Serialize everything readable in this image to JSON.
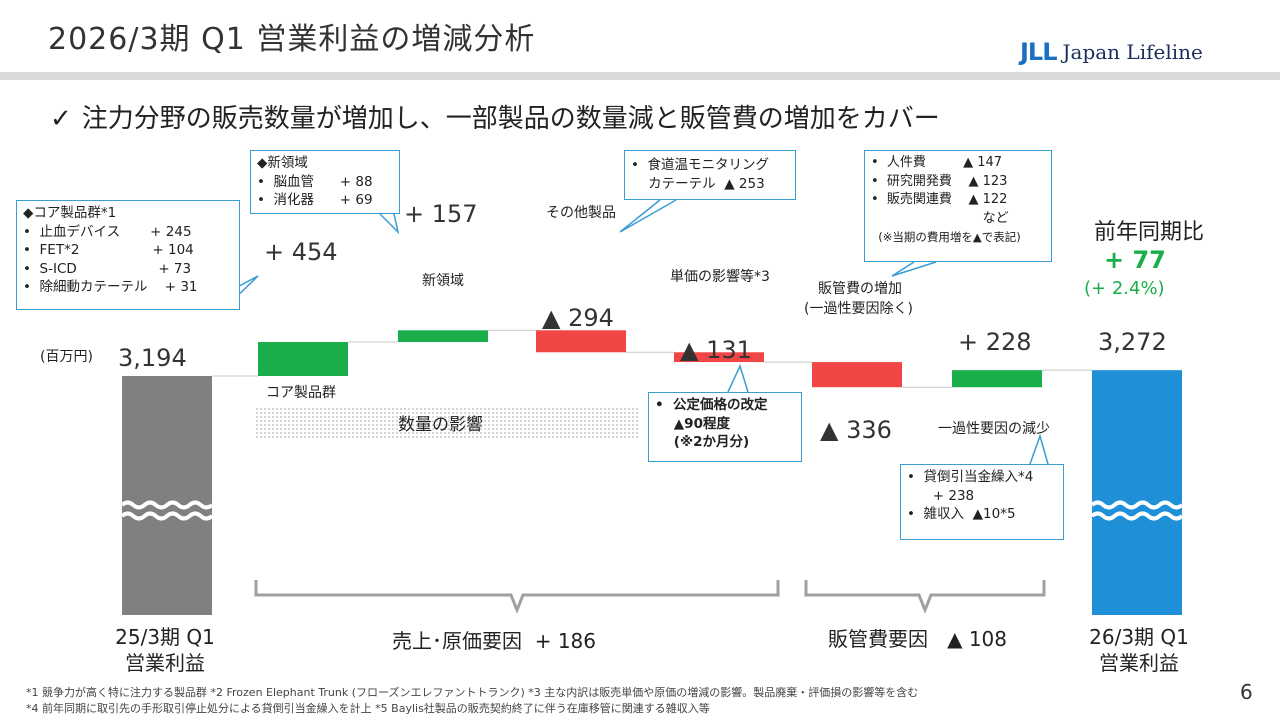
{
  "slide": {
    "title": "2026/3期 Q1 営業利益の増減分析",
    "logo_mark": "JLL",
    "logo_text": "Japan Lifeline",
    "headline": "注力分野の販売数量が増加し、一部製品の数量減と販管費の増加をカバー",
    "check_icon": "✓",
    "unit_label": "(百万円)",
    "page_number": "6"
  },
  "colors": {
    "increase": "#1aae4a",
    "decrease": "#f24545",
    "base_old": "#808080",
    "base_new": "#1f8fd8",
    "callout_border": "#3a9bd5"
  },
  "chart_data": {
    "type": "waterfall",
    "unit": "百万円",
    "steps": [
      {
        "name": "25/3期 Q1 営業利益",
        "kind": "total",
        "value": 3194,
        "label": "3,194"
      },
      {
        "name": "コア製品群",
        "kind": "delta",
        "value": 454,
        "label": "+ 454"
      },
      {
        "name": "新領域",
        "kind": "delta",
        "value": 157,
        "label": "+ 157"
      },
      {
        "name": "その他製品",
        "kind": "delta",
        "value": -294,
        "label": "▲ 294"
      },
      {
        "name": "単価の影響等",
        "kind": "delta",
        "value": -131,
        "label": "▲ 131"
      },
      {
        "name": "販管費の増加 (一過性要因除く)",
        "kind": "delta",
        "value": -336,
        "label": "▲ 336"
      },
      {
        "name": "一過性要因の減少",
        "kind": "delta",
        "value": 228,
        "label": "+ 228"
      },
      {
        "name": "26/3期 Q1 営業利益",
        "kind": "total",
        "value": 3272,
        "label": "3,272"
      }
    ],
    "groups": [
      {
        "label": "売上・原価要因 + 186",
        "value": 186
      },
      {
        "label": "販管費要因 ▲ 108",
        "value": -108
      }
    ],
    "yoy": {
      "title": "前年同期比",
      "value": "+ 77",
      "pct": "(+ 2.4%)"
    }
  },
  "labels": {
    "core": "コア製品群",
    "new": "新領域",
    "other": "その他製品",
    "price": "単価の影響等*3",
    "sga_line1": "販管費の増加",
    "sga_line2": "(一過性要因除く)",
    "onetime": "一過性要因の減少",
    "volume": "数量の影響",
    "v_start": "3,194",
    "v_core": "+ 454",
    "v_new": "+ 157",
    "v_other": "▲ 294",
    "v_price": "▲ 131",
    "v_sga": "▲ 336",
    "v_onetime": "+ 228",
    "v_end": "3,272",
    "yoy_title": "前年同期比",
    "yoy_value": "+ 77",
    "yoy_pct": "(+ 2.4%)",
    "bottom_start_1": "25/3期 Q1",
    "bottom_start_2": "営業利益",
    "bottom_group1_a": "売上･原価要因",
    "bottom_group1_b": "+ 186",
    "bottom_group2_a": "販管費要因",
    "bottom_group2_b": "▲ 108",
    "bottom_end_1": "26/3期 Q1",
    "bottom_end_2": "営業利益"
  },
  "callouts": {
    "core": {
      "title": "◆コア製品群*1",
      "rows": [
        "•  止血デバイス       + 245",
        "•  FET*2                 + 104",
        "•  S-ICD                   + 73",
        "•  除細動カテーテル    + 31"
      ]
    },
    "new": {
      "title": "◆新領域",
      "rows": [
        "•  脳血管      + 88",
        "•  消化器      + 69"
      ]
    },
    "other": {
      "rows": [
        "•  食道温モニタリング",
        "    カテーテル  ▲ 253"
      ]
    },
    "price": {
      "rows": [
        "•  公定価格の改定",
        "    ▲90程度",
        "    (※2か月分)"
      ]
    },
    "sga": {
      "rows": [
        "•  人件費         ▲ 147",
        "•  研究開発費    ▲ 123",
        "•  販売関連費    ▲ 122",
        "                           など",
        "  (※当期の費用増を▲で表記)"
      ]
    },
    "onetime": {
      "rows": [
        "•  貸倒引当金繰入*4",
        "      + 238",
        "•  雑収入  ▲10*5"
      ]
    }
  },
  "footnotes": {
    "line1": "*1 競争力が高く特に注力する製品群  *2 Frozen Elephant Trunk (フローズンエレファントトランク) *3 主な内訳は販売単価や原価の増減の影響。製品廃棄・評価損の影響等を含む",
    "line2": "*4 前年同期に取引先の手形取引停止処分による貸倒引当金繰入を計上  *5 Baylis社製品の販売契約終了に伴う在庫移管に関連する雑収入等"
  }
}
